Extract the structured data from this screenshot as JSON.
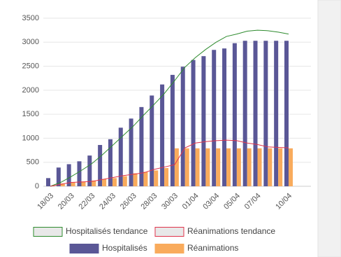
{
  "chart_data": {
    "type": "bar",
    "categories": [
      "18/03",
      null,
      "20/03",
      null,
      "22/03",
      null,
      "24/03",
      null,
      "26/03",
      null,
      "28/03",
      null,
      "30/03",
      null,
      "01/04",
      null,
      "03/04",
      null,
      "05/04",
      null,
      "07/04",
      null,
      null,
      "10/04"
    ],
    "series": [
      {
        "name": "Hospitalisés tendance",
        "type": "line",
        "color": "#2e8b2e",
        "values": [
          0,
          80,
          200,
          330,
          470,
          650,
          850,
          1050,
          1250,
          1480,
          1700,
          1930,
          2200,
          2480,
          2680,
          2850,
          3000,
          3120,
          3170,
          3230,
          3250,
          3240,
          3210,
          3170
        ]
      },
      {
        "name": "Réanimations tendance",
        "type": "line",
        "color": "#e0334b",
        "values": [
          0,
          40,
          80,
          90,
          100,
          140,
          180,
          220,
          250,
          280,
          350,
          400,
          450,
          800,
          900,
          930,
          950,
          960,
          950,
          900,
          870,
          820,
          810,
          800
        ]
      },
      {
        "name": "Hospitalisés",
        "type": "bar",
        "color": "#5a5796",
        "values": [
          170,
          390,
          460,
          520,
          640,
          860,
          980,
          1220,
          1410,
          1650,
          1890,
          2120,
          2320,
          2490,
          2630,
          2710,
          2840,
          2870,
          2980,
          3030,
          3030,
          3030,
          3030,
          3030
        ]
      },
      {
        "name": "Réanimations",
        "type": "bar",
        "color": "#f9ab5c",
        "values": [
          10,
          60,
          80,
          100,
          120,
          150,
          170,
          210,
          270,
          300,
          330,
          380,
          790,
          790,
          790,
          790,
          790,
          790,
          790,
          790,
          790,
          790,
          790,
          790
        ]
      }
    ],
    "ylim": [
      0,
      3500
    ],
    "yticks": [
      0,
      500,
      1000,
      1500,
      2000,
      2500,
      3000,
      3500
    ],
    "grid": true
  }
}
